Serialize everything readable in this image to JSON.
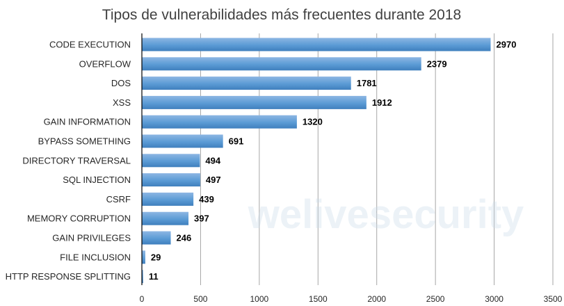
{
  "chart_data": {
    "type": "bar",
    "orientation": "horizontal",
    "title": "Tipos de vulnerabilidades más frecuentes durante 2018",
    "categories": [
      "CODE EXECUTION",
      "OVERFLOW",
      "DOS",
      "XSS",
      "GAIN INFORMATION",
      "BYPASS SOMETHING",
      "DIRECTORY TRAVERSAL",
      "SQL INJECTION",
      "CSRF",
      "MEMORY CORRUPTION",
      "GAIN PRIVILEGES",
      "FILE INCLUSION",
      "HTTP RESPONSE SPLITTING"
    ],
    "values": [
      2970,
      2379,
      1781,
      1912,
      1320,
      691,
      494,
      497,
      439,
      397,
      246,
      29,
      11
    ],
    "xlim": [
      0,
      3500
    ],
    "xticks": [
      0,
      500,
      1000,
      1500,
      2000,
      2500,
      3000,
      3500
    ],
    "grid": "vertical",
    "legend": "none",
    "bar_color": "#5b9bd5",
    "watermark": "welivesecurity"
  }
}
